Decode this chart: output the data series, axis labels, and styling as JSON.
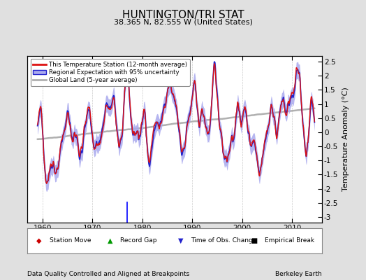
{
  "title": "HUNTINGTON/TRI STAT",
  "subtitle": "38.365 N, 82.555 W (United States)",
  "ylabel": "Temperature Anomaly (°C)",
  "xlabel_note": "Data Quality Controlled and Aligned at Breakpoints",
  "credit": "Berkeley Earth",
  "ylim": [
    -3.2,
    2.7
  ],
  "xlim": [
    1957,
    2016
  ],
  "yticks": [
    -3,
    -2.5,
    -2,
    -1.5,
    -1,
    -0.5,
    0,
    0.5,
    1,
    1.5,
    2,
    2.5
  ],
  "xticks": [
    1960,
    1970,
    1980,
    1990,
    2000,
    2010
  ],
  "bg_color": "#e0e0e0",
  "plot_bg_color": "#ffffff",
  "station_color": "#dd1111",
  "regional_color": "#2222cc",
  "regional_fill_color": "#aaaaee",
  "global_color": "#b0b0b0",
  "obs_change_year": 1977.0
}
